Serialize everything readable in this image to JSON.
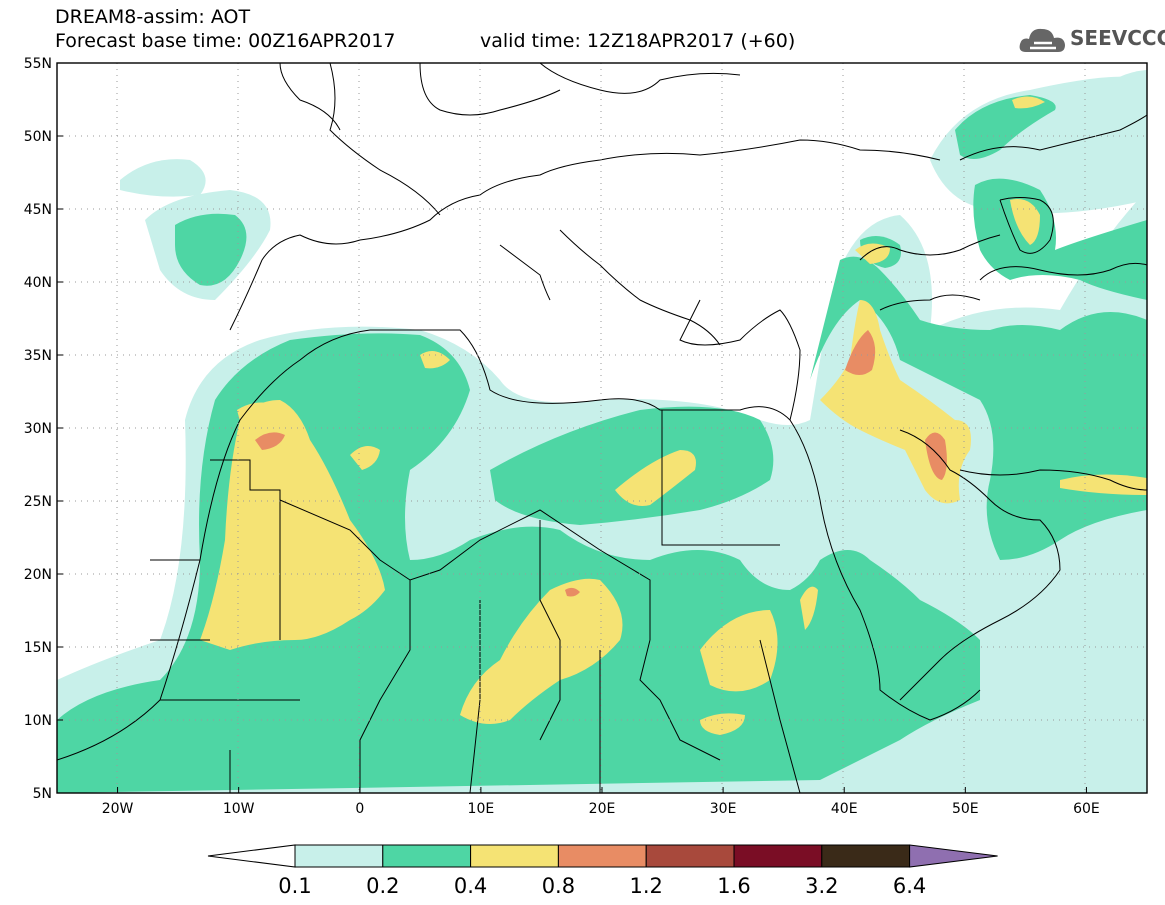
{
  "header": {
    "title": "DREAM8-assim: AOT",
    "base_time": "Forecast base time: 00Z16APR2017",
    "valid_time": "valid time: 12Z18APR2017 (+60)"
  },
  "logo": {
    "text": "SEEVCCC",
    "icon": "cloud-icon"
  },
  "map": {
    "lon_range": [
      -25,
      65
    ],
    "lat_range": [
      5,
      55
    ],
    "x_ticks": [
      "20W",
      "10W",
      "0",
      "10E",
      "20E",
      "30E",
      "40E",
      "50E",
      "60E"
    ],
    "y_ticks": [
      "5N",
      "10N",
      "15N",
      "20N",
      "25N",
      "30N",
      "35N",
      "40N",
      "45N",
      "50N",
      "55N"
    ],
    "grid": true,
    "colors": {
      "c1": "#c8f0ea",
      "c2": "#4ed6a4",
      "c3": "#f5e374",
      "c4": "#e88c64",
      "c5": "#a8493c"
    }
  },
  "colorbar": {
    "labels": [
      "0.1",
      "0.2",
      "0.4",
      "0.8",
      "1.2",
      "1.6",
      "3.2",
      "6.4"
    ],
    "colors": [
      "#c8f0ea",
      "#4ed6a4",
      "#f5e374",
      "#e88c64",
      "#a8493c",
      "#7a0d25",
      "#3a2a18"
    ],
    "over_color": "#8f6fb0",
    "under_color": "#ffffff"
  }
}
